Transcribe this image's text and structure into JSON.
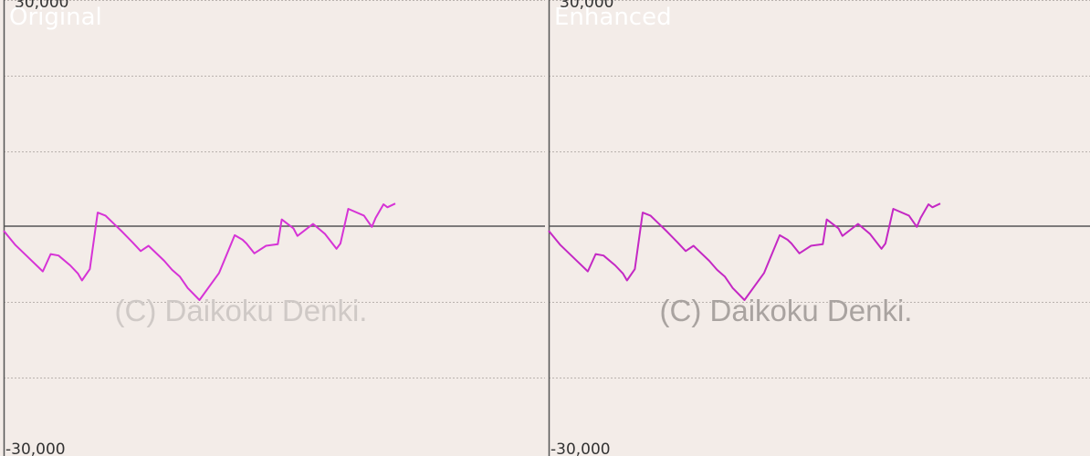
{
  "chart_data": [
    {
      "type": "line",
      "label": "Original",
      "y_ticks": [
        "30,000",
        "-30,000"
      ],
      "ylim": [
        -30000,
        30000
      ],
      "xlim": [
        0,
        100
      ],
      "grid": true,
      "watermark": "(C) Daikoku Denki.",
      "series": [
        {
          "color": "#d633d6",
          "x": [
            0,
            3,
            7,
            10,
            12,
            14,
            17,
            19,
            20,
            22,
            24,
            26,
            28,
            30,
            33,
            35,
            37,
            41,
            43,
            45,
            47,
            50,
            55,
            59,
            61,
            62,
            64,
            67,
            70,
            71,
            73,
            74,
            75,
            79,
            82,
            85,
            86,
            88,
            92,
            94,
            95,
            97,
            98,
            100
          ],
          "y": [
            -600,
            -2500,
            -4500,
            -6000,
            -3700,
            -3900,
            -5200,
            -6300,
            -7200,
            -5700,
            1800,
            1400,
            400,
            -600,
            -2200,
            -3300,
            -2600,
            -4600,
            -5800,
            -6700,
            -8200,
            -9800,
            -6200,
            -1200,
            -1800,
            -2300,
            -3600,
            -2600,
            -2400,
            900,
            100,
            -300,
            -1300,
            300,
            -1000,
            -3000,
            -2300,
            2300,
            1400,
            -100,
            1100,
            2900,
            2500,
            3000
          ]
        }
      ]
    },
    {
      "type": "line",
      "label": "Enhanced",
      "y_ticks": [
        "30,000",
        "-30,000"
      ],
      "ylim": [
        -30000,
        30000
      ],
      "xlim": [
        0,
        100
      ],
      "grid": true,
      "watermark": "(C) Daikoku Denki.",
      "series": [
        {
          "color": "#c428c4",
          "x": [
            0,
            3,
            7,
            10,
            12,
            14,
            17,
            19,
            20,
            22,
            24,
            26,
            28,
            30,
            33,
            35,
            37,
            41,
            43,
            45,
            47,
            50,
            55,
            59,
            61,
            62,
            64,
            67,
            70,
            71,
            73,
            74,
            75,
            79,
            82,
            85,
            86,
            88,
            92,
            94,
            95,
            97,
            98,
            100
          ],
          "y": [
            -600,
            -2500,
            -4500,
            -6000,
            -3700,
            -3900,
            -5200,
            -6300,
            -7200,
            -5700,
            1800,
            1400,
            400,
            -600,
            -2200,
            -3300,
            -2600,
            -4600,
            -5800,
            -6700,
            -8200,
            -9800,
            -6200,
            -1200,
            -1800,
            -2300,
            -3600,
            -2600,
            -2400,
            900,
            100,
            -300,
            -1300,
            300,
            -1000,
            -3000,
            -2300,
            2300,
            1400,
            -100,
            1100,
            2900,
            2500,
            3000
          ]
        }
      ]
    }
  ]
}
